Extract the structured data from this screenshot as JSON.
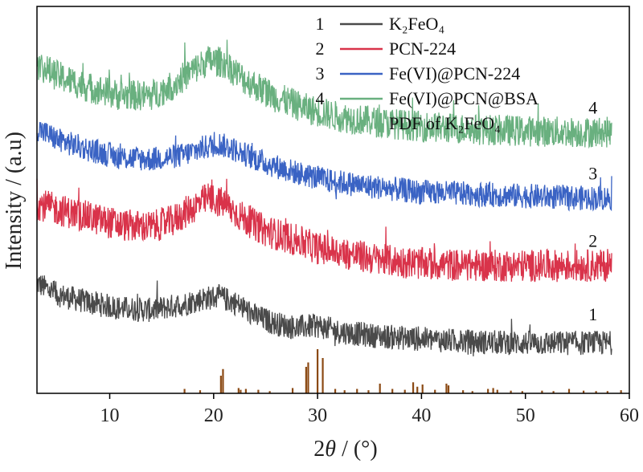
{
  "chart_data": {
    "type": "line",
    "xlabel_prefix": "2",
    "xlabel_var": "θ",
    "xlabel_suffix": " / (°)",
    "ylabel": "Intensity / (a.u)",
    "xlim": [
      3,
      60
    ],
    "ylim": [
      0,
      10
    ],
    "xticks": [
      10,
      20,
      30,
      40,
      50,
      60
    ],
    "yticks_shown": false,
    "legend_position": "top-right",
    "legend": [
      {
        "num": "1",
        "label": "K₂FeO₄",
        "color": "#4a4a4a"
      },
      {
        "num": "2",
        "label": "PCN-224",
        "color": "#d9334a"
      },
      {
        "num": "3",
        "label": "Fe(VI)@PCN-224",
        "color": "#3a63c4"
      },
      {
        "num": "4",
        "label": "Fe(VI)@PCN@BSA",
        "color": "#69b07f"
      },
      {
        "num": "",
        "label": "PDF of K₂FeO₄",
        "color": "#8b4a14"
      }
    ],
    "series": [
      {
        "name": "1",
        "color": "#4a4a4a",
        "label_x": 56.5,
        "label_y": 2.05,
        "noise": 0.32,
        "x": [
          3,
          5,
          8,
          11,
          14,
          17,
          19,
          20.5,
          22,
          24,
          26,
          28,
          30,
          32,
          35,
          40,
          45,
          50,
          55,
          58.3
        ],
        "y": [
          2.85,
          2.55,
          2.35,
          2.2,
          2.15,
          2.3,
          2.45,
          2.5,
          2.35,
          2.0,
          1.8,
          1.7,
          1.75,
          1.6,
          1.5,
          1.4,
          1.33,
          1.3,
          1.3,
          1.3
        ]
      },
      {
        "name": "2",
        "color": "#d9334a",
        "label_x": 56.5,
        "label_y": 3.95,
        "noise": 0.42,
        "x": [
          3,
          5,
          8,
          11,
          14,
          16,
          18,
          19.5,
          21,
          23,
          25,
          28,
          30,
          33,
          36,
          40,
          45,
          50,
          55,
          58.3
        ],
        "y": [
          4.9,
          4.75,
          4.55,
          4.35,
          4.3,
          4.45,
          4.8,
          5.05,
          4.9,
          4.5,
          4.2,
          3.95,
          3.75,
          3.6,
          3.45,
          3.35,
          3.3,
          3.3,
          3.3,
          3.3
        ]
      },
      {
        "name": "3",
        "color": "#3a63c4",
        "label_x": 56.5,
        "label_y": 5.7,
        "noise": 0.32,
        "x": [
          3,
          5,
          8,
          11,
          14,
          17,
          19,
          20.5,
          22,
          25,
          28,
          31,
          35,
          40,
          45,
          50,
          55,
          58.3
        ],
        "y": [
          6.85,
          6.55,
          6.3,
          6.1,
          6.05,
          6.15,
          6.35,
          6.45,
          6.3,
          5.95,
          5.7,
          5.5,
          5.35,
          5.2,
          5.15,
          5.1,
          5.05,
          5.05
        ]
      },
      {
        "name": "4",
        "color": "#69b07f",
        "label_x": 56.5,
        "label_y": 7.4,
        "noise": 0.4,
        "x": [
          3,
          5,
          8,
          11,
          14,
          16,
          18,
          19.5,
          21,
          23,
          26,
          29,
          32,
          36,
          40,
          45,
          50,
          55,
          58.3
        ],
        "y": [
          8.5,
          8.2,
          7.9,
          7.7,
          7.7,
          7.95,
          8.35,
          8.6,
          8.55,
          8.1,
          7.65,
          7.35,
          7.15,
          7.0,
          6.9,
          6.82,
          6.78,
          6.75,
          6.75
        ]
      }
    ],
    "pdf_reference": {
      "name": "PDF of K₂FeO₄",
      "color": "#8b4a14",
      "positions": [
        17.2,
        18.7,
        20.7,
        20.9,
        22.4,
        22.6,
        23.1,
        24.3,
        25.4,
        27.6,
        28.9,
        29.1,
        30.0,
        30.5,
        31.7,
        32.6,
        33.8,
        34.9,
        36.0,
        37.2,
        38.4,
        39.2,
        39.6,
        40.1,
        41.3,
        42.4,
        42.6,
        44.0,
        44.9,
        46.4,
        46.9,
        47.3,
        48.6,
        49.7,
        51.6,
        52.7,
        54.2,
        55.6,
        56.8,
        57.9,
        59.2
      ],
      "intensities": [
        0.1,
        0.07,
        0.4,
        0.55,
        0.12,
        0.08,
        0.1,
        0.08,
        0.05,
        0.12,
        0.6,
        0.7,
        1.0,
        0.8,
        0.1,
        0.07,
        0.1,
        0.07,
        0.22,
        0.1,
        0.08,
        0.25,
        0.15,
        0.2,
        0.08,
        0.22,
        0.18,
        0.07,
        0.05,
        0.1,
        0.12,
        0.08,
        0.06,
        0.05,
        0.06,
        0.05,
        0.1,
        0.06,
        0.05,
        0.05,
        0.07
      ]
    }
  }
}
